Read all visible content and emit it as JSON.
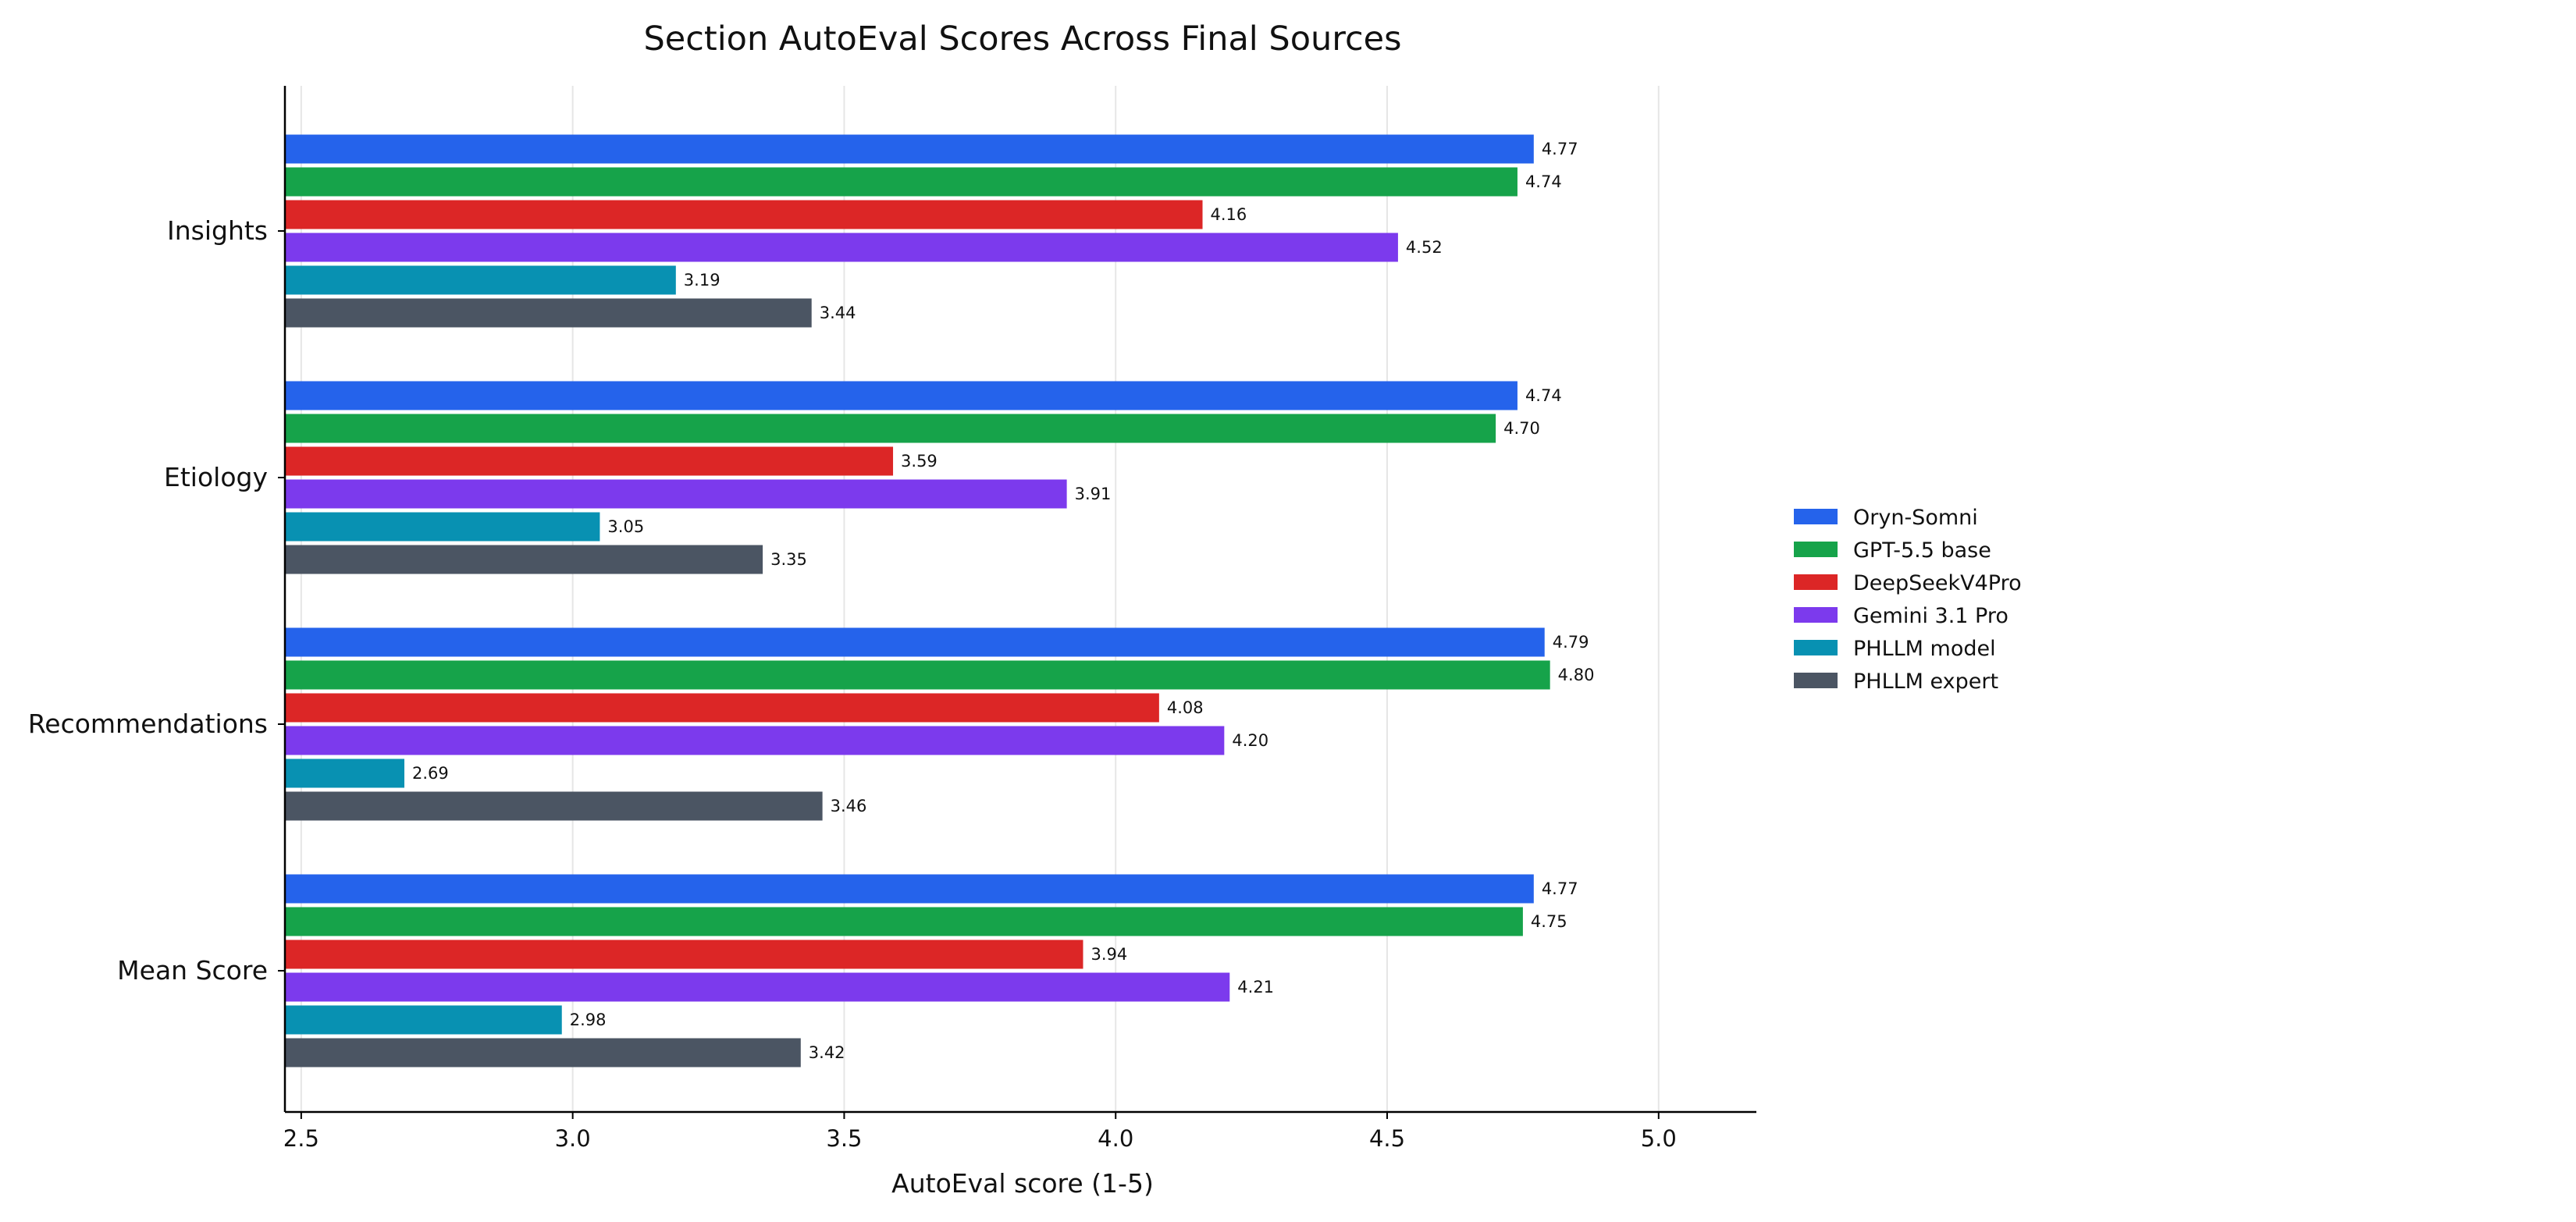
{
  "chart_data": {
    "type": "bar",
    "orientation": "horizontal",
    "title": "Section AutoEval Scores Across Final Sources",
    "xlabel": "AutoEval score (1-5)",
    "ylabel": "",
    "xlim": [
      2.47,
      5.18
    ],
    "xticks": [
      2.5,
      3.0,
      3.5,
      4.0,
      4.5,
      5.0
    ],
    "xtick_labels": [
      "2.5",
      "3.0",
      "3.5",
      "4.0",
      "4.5",
      "5.0"
    ],
    "grid": "vertical",
    "legend_position": "right",
    "categories": [
      "Insights",
      "Etiology",
      "Recommendations",
      "Mean Score"
    ],
    "series": [
      {
        "name": "Oryn-Somni",
        "color": "#2563eb",
        "values": [
          4.77,
          4.74,
          4.79,
          4.77
        ],
        "labels": [
          "4.77",
          "4.74",
          "4.79",
          "4.77"
        ]
      },
      {
        "name": "GPT-5.5 base",
        "color": "#16a34a",
        "values": [
          4.74,
          4.7,
          4.8,
          4.75
        ],
        "labels": [
          "4.74",
          "4.70",
          "4.80",
          "4.75"
        ]
      },
      {
        "name": "DeepSeekV4Pro",
        "color": "#dc2626",
        "values": [
          4.16,
          3.59,
          4.08,
          3.94
        ],
        "labels": [
          "4.16",
          "3.59",
          "4.08",
          "3.94"
        ]
      },
      {
        "name": "Gemini 3.1 Pro",
        "color": "#7c3aed",
        "values": [
          4.52,
          3.91,
          4.2,
          4.21
        ],
        "labels": [
          "4.52",
          "3.91",
          "4.20",
          "4.21"
        ]
      },
      {
        "name": "PHLLM model",
        "color": "#0891b2",
        "values": [
          3.19,
          3.05,
          2.69,
          2.98
        ],
        "labels": [
          "3.19",
          "3.05",
          "2.69",
          "2.98"
        ]
      },
      {
        "name": "PHLLM expert",
        "color": "#4b5563",
        "values": [
          3.44,
          3.35,
          3.46,
          3.42
        ],
        "labels": [
          "3.44",
          "3.35",
          "3.46",
          "3.42"
        ]
      }
    ]
  }
}
